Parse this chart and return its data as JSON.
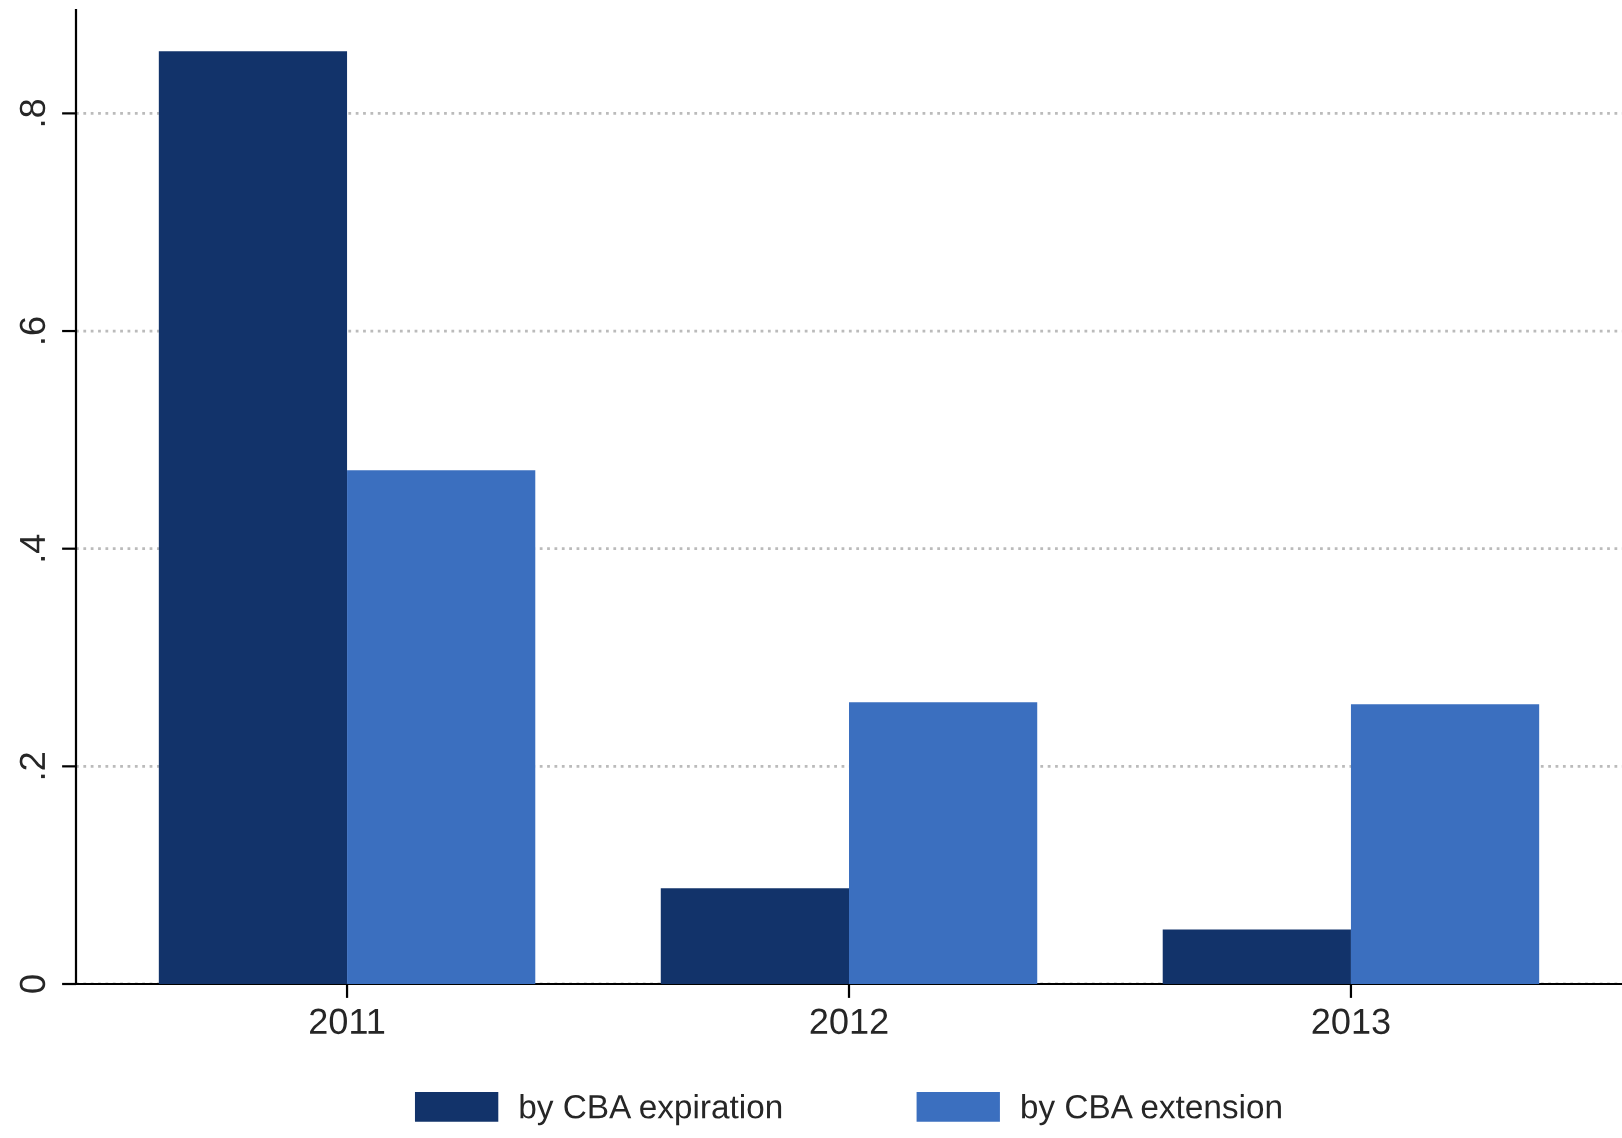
{
  "chart_data": {
    "type": "bar",
    "categories": [
      "2011",
      "2012",
      "2013"
    ],
    "series": [
      {
        "name": "by CBA expiration",
        "color": "#12336a",
        "values": [
          0.857,
          0.088,
          0.05
        ]
      },
      {
        "name": "by CBA extension",
        "color": "#3b6fbf",
        "values": [
          0.472,
          0.259,
          0.257
        ]
      }
    ],
    "ylim": [
      0,
      0.895
    ],
    "yticks": [
      {
        "value": 0,
        "label": "0"
      },
      {
        "value": 0.2,
        "label": ".2"
      },
      {
        "value": 0.4,
        "label": ".4"
      },
      {
        "value": 0.6,
        "label": ".6"
      },
      {
        "value": 0.8,
        "label": ".8"
      }
    ],
    "grid": "y",
    "legend": "bottom"
  }
}
